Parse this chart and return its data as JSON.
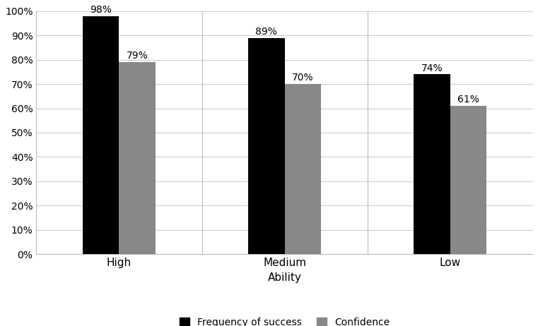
{
  "categories": [
    "High",
    "Medium",
    "Low"
  ],
  "frequency_of_success": [
    0.98,
    0.89,
    0.74
  ],
  "confidence": [
    0.79,
    0.7,
    0.61
  ],
  "bar_color_freq": "#000000",
  "bar_color_conf": "#888888",
  "xlabel": "Ability",
  "ylabel": "",
  "ylim": [
    0,
    1.0
  ],
  "yticks": [
    0.0,
    0.1,
    0.2,
    0.3,
    0.4,
    0.5,
    0.6,
    0.7,
    0.8,
    0.9,
    1.0
  ],
  "ytick_labels": [
    "0%",
    "10%",
    "20%",
    "30%",
    "40%",
    "50%",
    "60%",
    "70%",
    "80%",
    "90%",
    "100%"
  ],
  "legend_labels": [
    "Frequency of success",
    "Confidence"
  ],
  "bar_width": 0.22,
  "background_color": "#ffffff",
  "grid_color": "#cccccc",
  "label_fontsize": 11,
  "tick_fontsize": 10,
  "annotation_fontsize": 10,
  "legend_fontsize": 10
}
